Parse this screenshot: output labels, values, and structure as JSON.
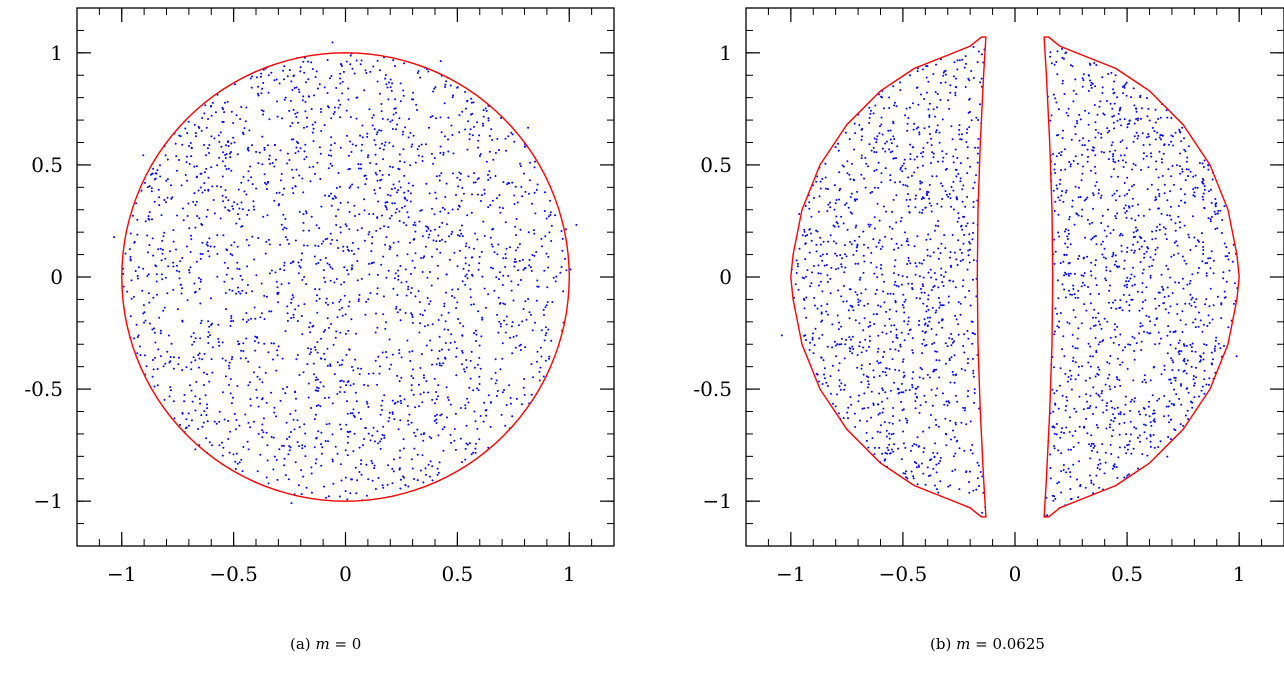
{
  "chart_data": [
    {
      "type": "scatter",
      "caption": {
        "prefix": "(a)",
        "variable": "m",
        "equals": "= 0"
      },
      "xlim": [
        -1.2,
        1.2
      ],
      "ylim": [
        -1.2,
        1.2
      ],
      "xticks": [
        -1,
        -0.5,
        0,
        0.5,
        1
      ],
      "xtick_labels": [
        "−1",
        "−0.5",
        "0",
        "0.5",
        "1"
      ],
      "yticks": [
        1,
        0.5,
        0,
        -0.5,
        -1
      ],
      "ytick_labels": [
        "1",
        "0.5",
        "0",
        "-0.5",
        "−1"
      ],
      "grid": false,
      "series": [
        {
          "kind": "points",
          "color": "#0000ff",
          "description": "uniform disk",
          "region": "disk",
          "radius": 1.0,
          "count": 2200,
          "halo": 0.06
        },
        {
          "kind": "curve",
          "color": "#ff0000",
          "shape": "circle",
          "radius": 1.0
        }
      ]
    },
    {
      "type": "scatter",
      "caption": {
        "prefix": "(b)",
        "variable": "m",
        "equals": "= 0.0625"
      },
      "xlim": [
        -1.2,
        1.2
      ],
      "ylim": [
        -1.2,
        1.2
      ],
      "xticks": [
        -1,
        -0.5,
        0,
        0.5,
        1
      ],
      "xtick_labels": [
        "−1",
        "−0.5",
        "0",
        "0.5",
        "1"
      ],
      "yticks": [
        1,
        0.5,
        0,
        -0.5,
        -1
      ],
      "ytick_labels": [
        "1",
        "0.5",
        "0",
        "-0.5",
        "−1"
      ],
      "grid": false,
      "series": [
        {
          "kind": "points",
          "color": "#0000ff",
          "region": "two-lobes",
          "count": 2400,
          "halo": 0.05
        },
        {
          "kind": "curve",
          "color": "#ff0000",
          "shape": "two-lobes",
          "lobe_right": [
            [
              0.13,
              1.07
            ],
            [
              0.15,
              1.07
            ],
            [
              0.2,
              1.03
            ],
            [
              0.3,
              0.99
            ],
            [
              0.45,
              0.93
            ],
            [
              0.6,
              0.83
            ],
            [
              0.75,
              0.68
            ],
            [
              0.87,
              0.5
            ],
            [
              0.95,
              0.3
            ],
            [
              0.99,
              0.1
            ],
            [
              1.0,
              0.0
            ],
            [
              0.99,
              -0.1
            ],
            [
              0.95,
              -0.3
            ],
            [
              0.87,
              -0.5
            ],
            [
              0.75,
              -0.68
            ],
            [
              0.6,
              -0.83
            ],
            [
              0.45,
              -0.93
            ],
            [
              0.3,
              -0.99
            ],
            [
              0.2,
              -1.03
            ],
            [
              0.15,
              -1.07
            ],
            [
              0.13,
              -1.07
            ],
            [
              0.14,
              -0.9
            ],
            [
              0.155,
              -0.6
            ],
            [
              0.165,
              -0.3
            ],
            [
              0.168,
              0.0
            ],
            [
              0.165,
              0.3
            ],
            [
              0.155,
              0.6
            ],
            [
              0.14,
              0.9
            ],
            [
              0.13,
              1.07
            ]
          ]
        }
      ]
    }
  ],
  "colors": {
    "points": "#0000ff",
    "boundary": "#ff0000",
    "axes": "#000000"
  }
}
